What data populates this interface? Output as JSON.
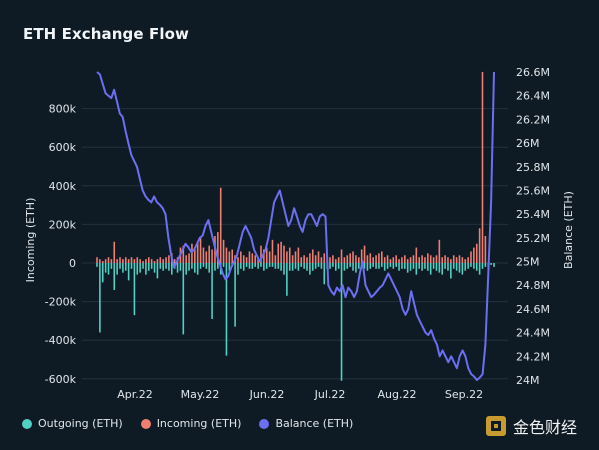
{
  "title": "ETH Exchange Flow",
  "colors": {
    "outgoing": "#4fd1c5",
    "incoming": "#f07f73",
    "balance": "#6c6ff2",
    "grid": "#22323d"
  },
  "legend": [
    {
      "label": "Outgoing (ETH)",
      "color": "#4fd1c5"
    },
    {
      "label": "Incoming (ETH)",
      "color": "#f07f73"
    },
    {
      "label": "Balance (ETH)",
      "color": "#6c6ff2"
    }
  ],
  "watermark": "金色财经",
  "chart_data": {
    "type": "bar",
    "x_labels": [
      "Apr.22",
      "May.22",
      "Jun.22",
      "Jul.22",
      "Aug.22",
      "Sep.22"
    ],
    "y_left": {
      "label": "Incoming (ETH)",
      "ticks": [
        "800k",
        "600k",
        "400k",
        "200k",
        "0",
        "-200k",
        "-400k",
        "-600k"
      ],
      "tick_values": [
        800000,
        600000,
        400000,
        200000,
        0,
        -200000,
        -400000,
        -600000
      ],
      "range": [
        -620000,
        1000000
      ]
    },
    "y_right": {
      "label": "Balance (ETH)",
      "ticks": [
        "26.6M",
        "26.4M",
        "26.2M",
        "26M",
        "25.8M",
        "25.6M",
        "25.4M",
        "25.2M",
        "25M",
        "24.8M",
        "24.6M",
        "24.4M",
        "24.2M",
        "24M"
      ],
      "tick_values": [
        26.6,
        26.4,
        26.2,
        26.0,
        25.8,
        25.6,
        25.4,
        25.2,
        25.0,
        24.8,
        24.6,
        24.4,
        24.2,
        24.0
      ],
      "range": [
        24.0,
        26.6
      ]
    },
    "series": [
      {
        "name": "Outgoing (ETH)",
        "type": "bar",
        "values": [
          -20000,
          -360000,
          -100000,
          -50000,
          -60000,
          -30000,
          -140000,
          -60000,
          -30000,
          -50000,
          -40000,
          -90000,
          -30000,
          -270000,
          -60000,
          -50000,
          -30000,
          -60000,
          -40000,
          -30000,
          -50000,
          -80000,
          -30000,
          -40000,
          -30000,
          -40000,
          -60000,
          -30000,
          -50000,
          -40000,
          -370000,
          -60000,
          -40000,
          -30000,
          -50000,
          -60000,
          -30000,
          -20000,
          -30000,
          -50000,
          -290000,
          -40000,
          -30000,
          -60000,
          -20000,
          -480000,
          -40000,
          -20000,
          -330000,
          -60000,
          -30000,
          -40000,
          -20000,
          -30000,
          -30000,
          -20000,
          -30000,
          -20000,
          -40000,
          -30000,
          -20000,
          -20000,
          -30000,
          -30000,
          -40000,
          -60000,
          -170000,
          -40000,
          -40000,
          -30000,
          -40000,
          -20000,
          -30000,
          -40000,
          -60000,
          -40000,
          -30000,
          -20000,
          -30000,
          -110000,
          -30000,
          -30000,
          -20000,
          -40000,
          -30000,
          -610000,
          -40000,
          -30000,
          -20000,
          -40000,
          -50000,
          -30000,
          -20000,
          -30000,
          -40000,
          -30000,
          -20000,
          -30000,
          -30000,
          -20000,
          -40000,
          -30000,
          -20000,
          -30000,
          -20000,
          -40000,
          -30000,
          -30000,
          -50000,
          -40000,
          -30000,
          -60000,
          -30000,
          -40000,
          -30000,
          -40000,
          -60000,
          -30000,
          -40000,
          -50000,
          -60000,
          -30000,
          -40000,
          -80000,
          -30000,
          -40000,
          -50000,
          -60000,
          -40000,
          -30000,
          -20000,
          -30000,
          -40000,
          -60000,
          -30000,
          -20000,
          -30000,
          -10000,
          -20000
        ]
      },
      {
        "name": "Incoming (ETH)",
        "type": "bar",
        "values": [
          30000,
          20000,
          10000,
          20000,
          30000,
          20000,
          110000,
          20000,
          30000,
          20000,
          30000,
          20000,
          30000,
          20000,
          30000,
          20000,
          10000,
          20000,
          30000,
          20000,
          10000,
          20000,
          30000,
          20000,
          30000,
          40000,
          50000,
          20000,
          30000,
          80000,
          90000,
          40000,
          50000,
          100000,
          70000,
          110000,
          130000,
          80000,
          60000,
          90000,
          70000,
          140000,
          160000,
          390000,
          120000,
          80000,
          60000,
          70000,
          40000,
          30000,
          60000,
          40000,
          30000,
          60000,
          50000,
          40000,
          30000,
          90000,
          70000,
          80000,
          60000,
          120000,
          40000,
          100000,
          110000,
          90000,
          60000,
          80000,
          40000,
          60000,
          80000,
          30000,
          40000,
          30000,
          50000,
          70000,
          40000,
          60000,
          30000,
          50000,
          40000,
          30000,
          40000,
          20000,
          30000,
          70000,
          30000,
          40000,
          50000,
          60000,
          40000,
          30000,
          70000,
          90000,
          40000,
          50000,
          30000,
          40000,
          50000,
          60000,
          30000,
          40000,
          20000,
          30000,
          40000,
          20000,
          30000,
          40000,
          20000,
          30000,
          40000,
          80000,
          30000,
          40000,
          30000,
          50000,
          40000,
          30000,
          40000,
          120000,
          30000,
          40000,
          30000,
          20000,
          40000,
          30000,
          40000,
          30000,
          20000,
          30000,
          60000,
          80000,
          100000,
          180000,
          990000,
          140000
        ]
      },
      {
        "name": "Balance (ETH)",
        "type": "line",
        "values": [
          26.6,
          26.58,
          26.5,
          26.42,
          26.4,
          26.38,
          26.45,
          26.35,
          26.25,
          26.22,
          26.1,
          26.0,
          25.9,
          25.85,
          25.8,
          25.7,
          25.6,
          25.55,
          25.52,
          25.5,
          25.55,
          25.5,
          25.48,
          25.45,
          25.4,
          25.2,
          25.05,
          24.95,
          25.0,
          25.05,
          25.1,
          25.15,
          25.12,
          25.08,
          25.1,
          25.15,
          25.2,
          25.22,
          25.3,
          25.35,
          25.25,
          25.15,
          25.05,
          24.98,
          24.9,
          24.85,
          24.88,
          24.95,
          25.0,
          25.05,
          25.15,
          25.25,
          25.3,
          25.25,
          25.2,
          25.1,
          25.05,
          25.0,
          25.05,
          25.1,
          25.2,
          25.35,
          25.5,
          25.55,
          25.6,
          25.5,
          25.4,
          25.3,
          25.35,
          25.45,
          25.38,
          25.3,
          25.25,
          25.35,
          25.4,
          25.4,
          25.35,
          25.3,
          25.38,
          25.4,
          25.38,
          24.8,
          24.75,
          24.72,
          24.78,
          24.75,
          24.8,
          24.7,
          24.78,
          24.75,
          24.7,
          24.75,
          24.9,
          25.0,
          24.8,
          24.75,
          24.7,
          24.72,
          24.75,
          24.78,
          24.8,
          24.85,
          24.9,
          24.85,
          24.8,
          24.75,
          24.7,
          24.6,
          24.55,
          24.6,
          24.75,
          24.65,
          24.55,
          24.5,
          24.45,
          24.4,
          24.38,
          24.42,
          24.35,
          24.3,
          24.2,
          24.25,
          24.2,
          24.15,
          24.2,
          24.15,
          24.1,
          24.2,
          24.25,
          24.2,
          24.1,
          24.05,
          24.03,
          24.0,
          24.02,
          24.05,
          24.3,
          24.9,
          25.5,
          26.6
        ]
      }
    ],
    "grid": true,
    "legend_position": "bottom-left"
  }
}
